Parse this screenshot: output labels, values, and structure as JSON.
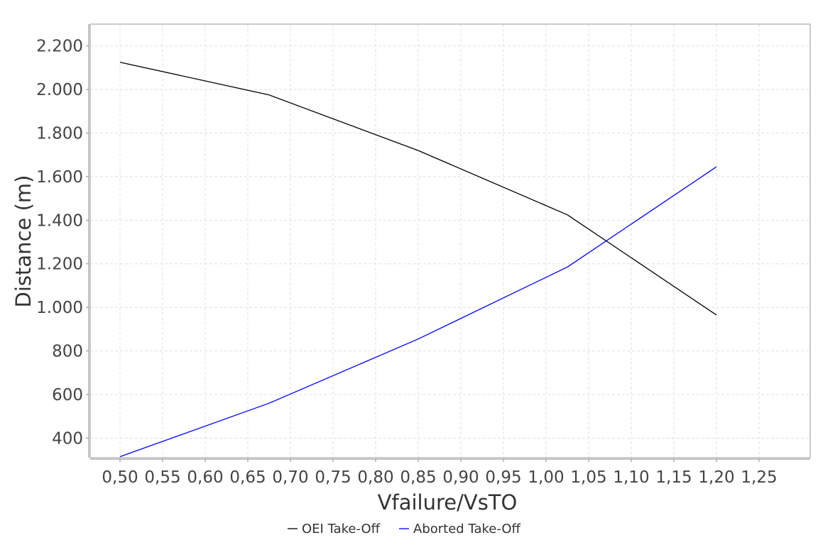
{
  "chart_data": {
    "type": "line",
    "xlabel": "Vfailure/VsTO",
    "ylabel": "Distance (m)",
    "xlim": [
      0.465,
      1.31
    ],
    "ylim": [
      310,
      2300
    ],
    "x_ticks": [
      0.5,
      0.55,
      0.6,
      0.65,
      0.7,
      0.75,
      0.8,
      0.85,
      0.9,
      0.95,
      1.0,
      1.05,
      1.1,
      1.15,
      1.2,
      1.25
    ],
    "x_tick_labels": [
      "0,50",
      "0,55",
      "0,60",
      "0,65",
      "0,70",
      "0,75",
      "0,80",
      "0,85",
      "0,90",
      "0,95",
      "1,00",
      "1,05",
      "1,10",
      "1,15",
      "1,20",
      "1,25"
    ],
    "y_ticks": [
      400,
      600,
      800,
      1000,
      1200,
      1400,
      1600,
      1800,
      2000,
      2200
    ],
    "y_tick_labels": [
      "400",
      "600",
      "800",
      "1.000",
      "1.200",
      "1.400",
      "1.600",
      "1.800",
      "2.000",
      "2.200"
    ],
    "grid": true,
    "legend_position": "bottom-center",
    "series": [
      {
        "name": "OEI Take-Off",
        "color": "#000000",
        "x": [
          0.5,
          0.675,
          0.85,
          1.025,
          1.2
        ],
        "y": [
          2125,
          1975,
          1720,
          1425,
          965
        ]
      },
      {
        "name": "Aborted Take-Off",
        "color": "#0000ff",
        "x": [
          0.5,
          0.675,
          0.85,
          1.025,
          1.2
        ],
        "y": [
          315,
          560,
          855,
          1185,
          1645
        ]
      }
    ]
  }
}
